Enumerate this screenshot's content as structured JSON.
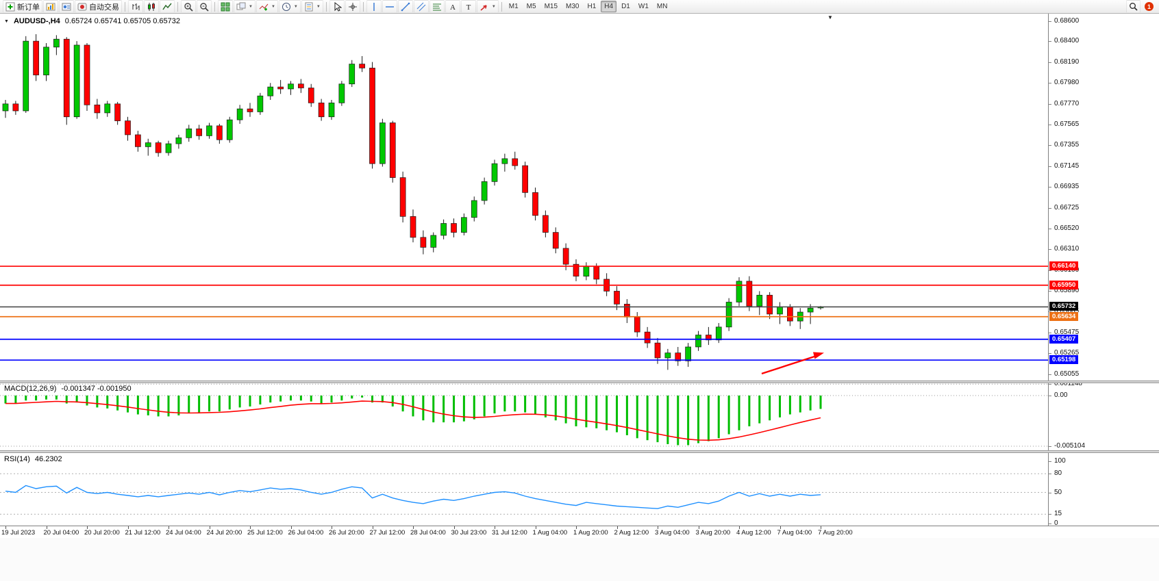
{
  "toolbar": {
    "new_order_label": "新订单",
    "autotrade_label": "自动交易",
    "notification_count": "1",
    "timeframes": [
      "M1",
      "M5",
      "M15",
      "M30",
      "H1",
      "H4",
      "D1",
      "W1",
      "MN"
    ],
    "active_timeframe": "H4",
    "buttons": [
      {
        "name": "new-order",
        "icon": "new-order-icon",
        "label": "新订单"
      },
      {
        "name": "market-watch",
        "icon": "market-watch-icon"
      },
      {
        "name": "navigator",
        "icon": "navigator-icon"
      },
      {
        "name": "autotrading",
        "icon": "autotrade-icon",
        "label": "自动交易"
      },
      {
        "sep": true
      },
      {
        "name": "bar-chart",
        "icon": "bars-icon"
      },
      {
        "name": "candlestick-chart",
        "icon": "candles-icon"
      },
      {
        "name": "line-chart",
        "icon": "line-chart-icon"
      },
      {
        "sep": true
      },
      {
        "name": "zoom-in",
        "icon": "zoom-in-icon"
      },
      {
        "name": "zoom-out",
        "icon": "zoom-out-icon"
      },
      {
        "sep": true
      },
      {
        "name": "tile-windows",
        "icon": "tile-icon"
      },
      {
        "name": "auto-arrange",
        "icon": "arrange-icon",
        "caret": true
      },
      {
        "name": "indicators",
        "icon": "indicators-icon",
        "caret": true
      },
      {
        "name": "periods",
        "icon": "clock-icon",
        "caret": true
      },
      {
        "name": "templates",
        "icon": "template-icon",
        "caret": true
      },
      {
        "sep": true
      },
      {
        "name": "cursor",
        "icon": "cursor-icon"
      },
      {
        "name": "crosshair",
        "icon": "crosshair-icon"
      },
      {
        "sep": true
      },
      {
        "name": "vertical-line",
        "icon": "vline-icon"
      },
      {
        "name": "horizontal-line",
        "icon": "hline-icon"
      },
      {
        "name": "trendline",
        "icon": "trendline-icon"
      },
      {
        "name": "equidistant-channel",
        "icon": "channel-icon"
      },
      {
        "name": "fibonacci",
        "icon": "fibo-icon"
      },
      {
        "name": "text",
        "icon": "text-icon"
      },
      {
        "name": "text-label",
        "icon": "label-icon"
      },
      {
        "name": "arrows",
        "icon": "shapes-icon",
        "caret": true
      },
      {
        "sep": true
      }
    ]
  },
  "colors": {
    "bull": "#00C800",
    "bear": "#FF0000",
    "outline": "#1a1a1a",
    "macd_hist": "#00BE00",
    "macd_signal": "#FF0000",
    "rsi_line": "#1E90FF",
    "level_red": "#FF0000",
    "level_blue": "#0000FF",
    "level_orange": "#ED7014",
    "current_price_line": "#4D4D4D",
    "current_price_badge": "#000000",
    "arrow_object": "#FF0000"
  },
  "chart_data": [
    {
      "type": "candlestick",
      "symbol": "AUDUSD-,H4",
      "ohlc_line": "0.65724 0.65741 0.65705 0.65732",
      "y_ticks": [
        "0.68600",
        "0.68400",
        "0.68190",
        "0.67980",
        "0.67770",
        "0.67565",
        "0.67355",
        "0.67145",
        "0.66935",
        "0.66725",
        "0.66520",
        "0.66310",
        "0.66100",
        "0.65890",
        "0.65685",
        "0.65475",
        "0.65265",
        "0.65055"
      ],
      "x_labels": [
        "19 Jul 2023",
        "20 Jul 04:00",
        "20 Jul 20:00",
        "21 Jul 12:00",
        "24 Jul 04:00",
        "24 Jul 20:00",
        "25 Jul 12:00",
        "26 Jul 04:00",
        "26 Jul 20:00",
        "27 Jul 12:00",
        "28 Jul 04:00",
        "30 Jul 23:00",
        "31 Jul 12:00",
        "1 Aug 04:00",
        "1 Aug 20:00",
        "2 Aug 12:00",
        "3 Aug 04:00",
        "3 Aug 20:00",
        "4 Aug 12:00",
        "7 Aug 04:00",
        "7 Aug 20:00"
      ],
      "levels": [
        {
          "label": "0.66140",
          "value": 0.6614,
          "color": "#FF0000",
          "kind": "resistance-line"
        },
        {
          "label": "0.65950",
          "value": 0.6595,
          "color": "#FF0000",
          "kind": "resistance-line"
        },
        {
          "label": "0.65732",
          "value": 0.65732,
          "color": "#4D4D4D",
          "badge": "#000000",
          "kind": "current-price-line"
        },
        {
          "label": "0.65634",
          "value": 0.65634,
          "color": "#ED7014",
          "kind": "orange-line"
        },
        {
          "label": "0.65407",
          "value": 0.65407,
          "color": "#0000FF",
          "kind": "support-line"
        },
        {
          "label": "0.65198",
          "value": 0.65198,
          "color": "#0000FF",
          "kind": "support-line"
        }
      ],
      "annotations": [
        {
          "type": "arrow",
          "color": "#FF0000",
          "direction": "up-right",
          "points_to_level": "0.65198"
        }
      ],
      "candles": [
        [
          0.677,
          0.6781,
          0.6763,
          0.6777
        ],
        [
          0.6777,
          0.678,
          0.6766,
          0.677
        ],
        [
          0.677,
          0.6845,
          0.6768,
          0.684
        ],
        [
          0.684,
          0.6847,
          0.68,
          0.6806
        ],
        [
          0.6806,
          0.6838,
          0.68,
          0.6834
        ],
        [
          0.6834,
          0.6846,
          0.6826,
          0.6842
        ],
        [
          0.6842,
          0.6844,
          0.6756,
          0.6764
        ],
        [
          0.6764,
          0.684,
          0.6762,
          0.6836
        ],
        [
          0.6836,
          0.6838,
          0.677,
          0.6776
        ],
        [
          0.6776,
          0.6782,
          0.6762,
          0.6768
        ],
        [
          0.6768,
          0.678,
          0.6764,
          0.6777
        ],
        [
          0.6777,
          0.6779,
          0.6756,
          0.676
        ],
        [
          0.676,
          0.6764,
          0.674,
          0.6746
        ],
        [
          0.6746,
          0.675,
          0.6729,
          0.6734
        ],
        [
          0.6734,
          0.6742,
          0.6725,
          0.6738
        ],
        [
          0.6738,
          0.674,
          0.6724,
          0.6728
        ],
        [
          0.6728,
          0.674,
          0.6725,
          0.6737
        ],
        [
          0.6737,
          0.6746,
          0.6732,
          0.6743
        ],
        [
          0.6743,
          0.6756,
          0.6739,
          0.6752
        ],
        [
          0.6752,
          0.6756,
          0.6741,
          0.6745
        ],
        [
          0.6745,
          0.6758,
          0.6742,
          0.6755
        ],
        [
          0.6755,
          0.6757,
          0.6737,
          0.6741
        ],
        [
          0.6741,
          0.6764,
          0.6738,
          0.6761
        ],
        [
          0.6761,
          0.6776,
          0.6757,
          0.6772
        ],
        [
          0.6772,
          0.6778,
          0.6764,
          0.6769
        ],
        [
          0.6769,
          0.6788,
          0.6766,
          0.6785
        ],
        [
          0.6785,
          0.6798,
          0.6781,
          0.6794
        ],
        [
          0.6794,
          0.6801,
          0.6787,
          0.6792
        ],
        [
          0.6792,
          0.68,
          0.6786,
          0.6797
        ],
        [
          0.6797,
          0.6802,
          0.6788,
          0.6793
        ],
        [
          0.6793,
          0.6797,
          0.6774,
          0.6778
        ],
        [
          0.6778,
          0.6782,
          0.676,
          0.6764
        ],
        [
          0.6764,
          0.6781,
          0.6761,
          0.6778
        ],
        [
          0.6778,
          0.68,
          0.6775,
          0.6797
        ],
        [
          0.6797,
          0.6821,
          0.6794,
          0.6817
        ],
        [
          0.6817,
          0.6825,
          0.6809,
          0.6813
        ],
        [
          0.6813,
          0.6819,
          0.6712,
          0.6717
        ],
        [
          0.6717,
          0.6762,
          0.6714,
          0.6758
        ],
        [
          0.6758,
          0.676,
          0.6698,
          0.6703
        ],
        [
          0.6703,
          0.6709,
          0.6658,
          0.6664
        ],
        [
          0.6664,
          0.6671,
          0.6638,
          0.6643
        ],
        [
          0.6643,
          0.665,
          0.6626,
          0.6633
        ],
        [
          0.6633,
          0.6648,
          0.6628,
          0.6645
        ],
        [
          0.6645,
          0.6661,
          0.6641,
          0.6657
        ],
        [
          0.6657,
          0.6662,
          0.6643,
          0.6648
        ],
        [
          0.6648,
          0.6667,
          0.6645,
          0.6663
        ],
        [
          0.6663,
          0.6684,
          0.6659,
          0.668
        ],
        [
          0.668,
          0.6703,
          0.6676,
          0.6699
        ],
        [
          0.6699,
          0.6721,
          0.6695,
          0.6717
        ],
        [
          0.6717,
          0.6727,
          0.6709,
          0.6722
        ],
        [
          0.6722,
          0.6729,
          0.6711,
          0.6715
        ],
        [
          0.6715,
          0.6719,
          0.6683,
          0.6688
        ],
        [
          0.6688,
          0.6693,
          0.666,
          0.6665
        ],
        [
          0.6665,
          0.667,
          0.6643,
          0.6648
        ],
        [
          0.6648,
          0.6653,
          0.6627,
          0.6632
        ],
        [
          0.6632,
          0.6637,
          0.661,
          0.6616
        ],
        [
          0.6616,
          0.6621,
          0.6599,
          0.6604
        ],
        [
          0.6604,
          0.6618,
          0.66,
          0.6614
        ],
        [
          0.6614,
          0.6617,
          0.6596,
          0.6601
        ],
        [
          0.6601,
          0.6607,
          0.6584,
          0.6589
        ],
        [
          0.6589,
          0.6594,
          0.657,
          0.6576
        ],
        [
          0.6576,
          0.6581,
          0.6557,
          0.6563
        ],
        [
          0.6563,
          0.6568,
          0.6543,
          0.6548
        ],
        [
          0.6548,
          0.6553,
          0.6532,
          0.6537
        ],
        [
          0.6537,
          0.6542,
          0.6516,
          0.6522
        ],
        [
          0.6522,
          0.6531,
          0.651,
          0.6527
        ],
        [
          0.6527,
          0.6533,
          0.6514,
          0.6519
        ],
        [
          0.6519,
          0.6537,
          0.6513,
          0.6533
        ],
        [
          0.6533,
          0.6549,
          0.6529,
          0.6545
        ],
        [
          0.6545,
          0.6553,
          0.6535,
          0.654
        ],
        [
          0.654,
          0.6557,
          0.6537,
          0.6553
        ],
        [
          0.6553,
          0.6582,
          0.6549,
          0.6578
        ],
        [
          0.6578,
          0.6603,
          0.6574,
          0.6599
        ],
        [
          0.6599,
          0.6604,
          0.6569,
          0.6574
        ],
        [
          0.6574,
          0.6589,
          0.6565,
          0.6585
        ],
        [
          0.6585,
          0.6588,
          0.6561,
          0.6566
        ],
        [
          0.6566,
          0.6578,
          0.6556,
          0.6573
        ],
        [
          0.6573,
          0.6576,
          0.6554,
          0.6559
        ],
        [
          0.6559,
          0.6572,
          0.6551,
          0.6568
        ],
        [
          0.6568,
          0.6576,
          0.6556,
          0.6572
        ],
        [
          0.65724,
          0.65741,
          0.65705,
          0.65732
        ]
      ]
    },
    {
      "type": "bar",
      "name": "MACD(12,26,9)",
      "values_label": "-0.001347 -0.001950",
      "y_ticks": [
        "0.001148",
        "0.00",
        "-0.005104"
      ],
      "signal": "EMA9 of values (red line)",
      "values": [
        -0.0008,
        -0.0008,
        -0.0005,
        -0.0005,
        -0.0004,
        -0.0004,
        -0.0008,
        -0.0007,
        -0.001,
        -0.0012,
        -0.0013,
        -0.0015,
        -0.0017,
        -0.0019,
        -0.002,
        -0.0021,
        -0.0021,
        -0.002,
        -0.0018,
        -0.0017,
        -0.0016,
        -0.0016,
        -0.0014,
        -0.0012,
        -0.0011,
        -0.0009,
        -0.0007,
        -0.0006,
        -0.0005,
        -0.0005,
        -0.0006,
        -0.0008,
        -0.0007,
        -0.0005,
        -0.0003,
        -0.0002,
        -0.0007,
        -0.0007,
        -0.0011,
        -0.0016,
        -0.0021,
        -0.0025,
        -0.0027,
        -0.0027,
        -0.0027,
        -0.0026,
        -0.0024,
        -0.0021,
        -0.0018,
        -0.0016,
        -0.0016,
        -0.0017,
        -0.0019,
        -0.0022,
        -0.0025,
        -0.0028,
        -0.0031,
        -0.0032,
        -0.0033,
        -0.0035,
        -0.0037,
        -0.004,
        -0.0043,
        -0.0045,
        -0.0047,
        -0.0049,
        -0.005,
        -0.005,
        -0.0048,
        -0.0046,
        -0.0043,
        -0.0039,
        -0.0035,
        -0.0031,
        -0.0028,
        -0.0025,
        -0.0022,
        -0.0019,
        -0.0017,
        -0.0015,
        -0.001347
      ]
    },
    {
      "type": "line",
      "name": "RSI(14)",
      "current_value": "46.2302",
      "y_ticks": [
        "100",
        "80",
        "50",
        "15",
        "0"
      ],
      "levels": [
        80,
        50,
        15
      ],
      "values": [
        52,
        50,
        61,
        56,
        59,
        60,
        49,
        58,
        50,
        48,
        50,
        47,
        45,
        43,
        45,
        43,
        45,
        47,
        49,
        47,
        50,
        46,
        50,
        53,
        51,
        54,
        57,
        55,
        56,
        54,
        50,
        47,
        50,
        55,
        59,
        57,
        41,
        47,
        41,
        37,
        34,
        32,
        36,
        39,
        37,
        40,
        44,
        47,
        50,
        51,
        49,
        44,
        40,
        37,
        34,
        31,
        29,
        34,
        32,
        30,
        28,
        27,
        26,
        25,
        24,
        28,
        26,
        30,
        34,
        32,
        36,
        44,
        50,
        44,
        48,
        44,
        47,
        44,
        47,
        45,
        46.2302
      ]
    }
  ]
}
